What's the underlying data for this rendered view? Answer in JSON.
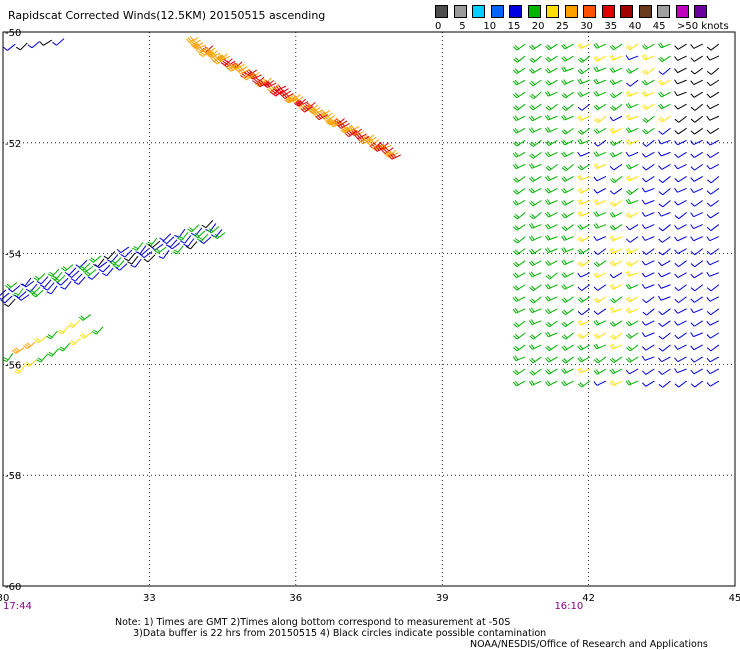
{
  "title": "Rapidscat Corrected Winds(12.5KM) 20150515 ascending",
  "legend": {
    "labels": [
      "0",
      "5",
      "10",
      "15",
      "20",
      "25",
      "30",
      "35",
      "40",
      "45",
      ">50 knots"
    ],
    "colors": [
      "#4d4d4d",
      "#9a9a9a",
      "#00cfff",
      "#0064ff",
      "#0000e0",
      "#00b400",
      "#ffe000",
      "#ffa000",
      "#ff5000",
      "#e00000",
      "#a00000",
      "#6a3a1a",
      "#a0a0a0",
      "#c000c0",
      "#6a00a0"
    ]
  },
  "map": {
    "lon_min": 30,
    "lon_max": 45,
    "lat_min": -60,
    "lat_max": -50,
    "lon_ticks": [
      "30",
      "33",
      "36",
      "39",
      "42",
      "45"
    ],
    "lat_ticks": [
      "-50",
      "-52",
      "-54",
      "-56",
      "-58",
      "-60"
    ],
    "time_labels": [
      {
        "text": "17:44",
        "lon": 30
      },
      {
        "text": "16:10",
        "lon": 41.3
      }
    ],
    "wind_swaths": [
      {
        "name": "west-upper",
        "lon_start": 30,
        "lat_start": -50.0,
        "lon_end": 31.0,
        "lat_end": -49.9,
        "rows": 2,
        "cols": 5,
        "speed": 12,
        "dir": 230
      },
      {
        "name": "central-ne",
        "lon_start": 34.0,
        "lat_start": -50.1,
        "lon_end": 37.9,
        "lat_end": -52.0,
        "rows": 6,
        "cols": 14,
        "speed": 30,
        "dir": 235
      },
      {
        "name": "west-lower",
        "lon_start": 30.0,
        "lat_start": -54.6,
        "lon_end": 34.3,
        "lat_end": -53.4,
        "rows": 5,
        "cols": 16,
        "speed": 14,
        "dir": 225
      },
      {
        "name": "west-bottom",
        "lon_start": 30.2,
        "lat_start": -55.8,
        "lon_end": 31.8,
        "lat_end": -55.1,
        "rows": 2,
        "cols": 8,
        "speed": 22,
        "dir": 225
      },
      {
        "name": "east-box",
        "lon_start": 40.7,
        "lat_start": -50.0,
        "lon_end": 45.0,
        "lat_end": -56.3,
        "rows": 30,
        "cols": 14,
        "speed": 18,
        "dir": 240
      }
    ]
  },
  "notes": {
    "line1": "Note: 1) Times are GMT 2)Times along bottom correspond to measurement at -50S",
    "line2": "3)Data buffer is 22 hrs from 20150515 4) Black circles indicate possible contamination"
  },
  "credit": "NOAA/NESDIS/Office of Research and Applications"
}
